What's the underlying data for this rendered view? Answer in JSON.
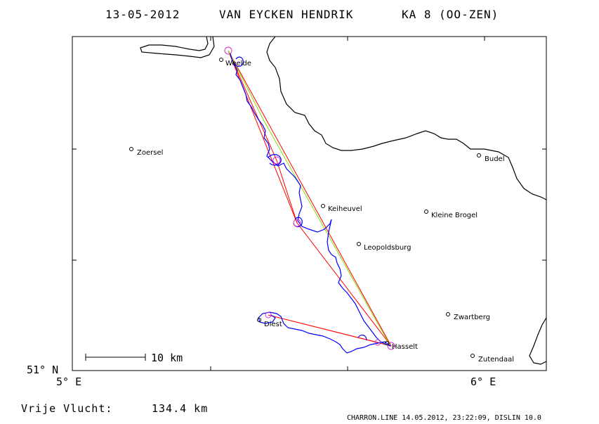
{
  "title": {
    "date": "13-05-2012",
    "pilot": "VAN EYCKEN HENDRIK",
    "glider": "KA 8 (OO-ZEN)"
  },
  "axes": {
    "lat_label": "51° N",
    "lon_left_label": "5° E",
    "lon_right_label": "6° E"
  },
  "scale_bar": {
    "label": "10 km"
  },
  "cities": [
    {
      "name": "Weelde"
    },
    {
      "name": "Zoersel"
    },
    {
      "name": "Budel"
    },
    {
      "name": "Keiheuvel"
    },
    {
      "name": "Kleine Brogel"
    },
    {
      "name": "Leopoldsburg"
    },
    {
      "name": "Zwartberg"
    },
    {
      "name": "Diest"
    },
    {
      "name": "Hasselt"
    },
    {
      "name": "Zutendaal"
    }
  ],
  "result": {
    "label": "Vrije Vlucht:",
    "value": "134.4 km"
  },
  "footer": "CHARRON.LINE 14.05.2012, 23:22:09, DISLIN 10.0",
  "colors": {
    "track": "#0000ff",
    "task_line": "#ff0000",
    "optimized_line": "#88dd00",
    "turnpoint": "#cc33cc",
    "border": "#000000"
  }
}
